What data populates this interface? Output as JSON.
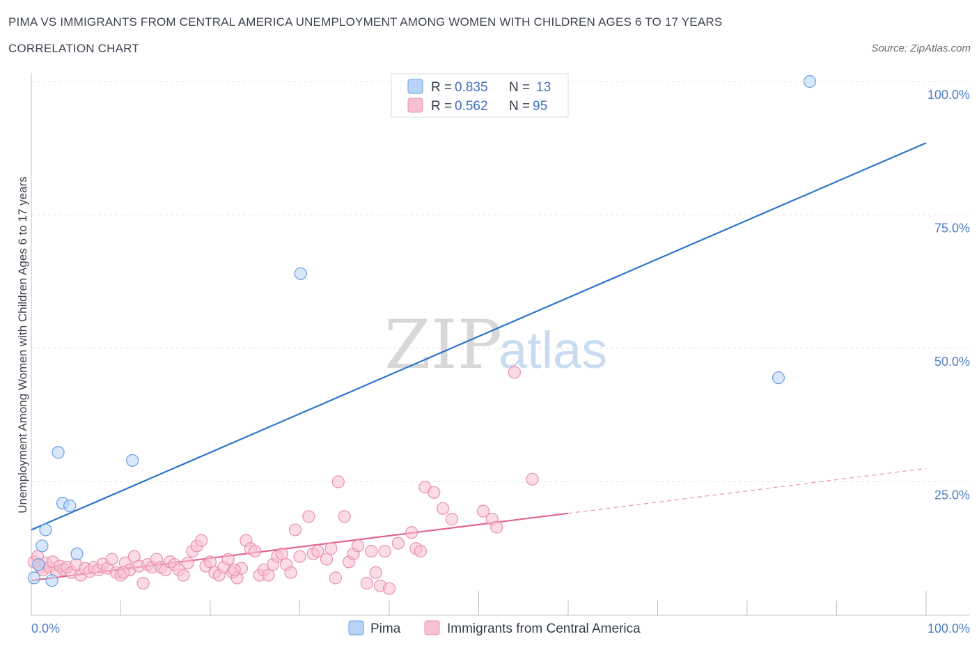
{
  "header": {
    "title": "PIMA VS IMMIGRANTS FROM CENTRAL AMERICA UNEMPLOYMENT AMONG WOMEN WITH CHILDREN AGES 6 TO 17 YEARS",
    "subtitle": "CORRELATION CHART",
    "source": "Source: ZipAtlas.com"
  },
  "watermark": {
    "zip": "ZIP",
    "atlas": "atlas"
  },
  "colors": {
    "pima_fill": "#b8d3f5",
    "pima_stroke": "#6b9ee0",
    "pima_line": "#2f74cc",
    "imm_fill": "#f7c0d2",
    "imm_stroke": "#e890ad",
    "imm_line": "#e2638f",
    "grid": "#e3e3e3",
    "axis": "#bfbfbf",
    "tick_text": "#4f7fc4"
  },
  "chart_data": {
    "type": "scatter",
    "title": "PIMA VS IMMIGRANTS FROM CENTRAL AMERICA UNEMPLOYMENT AMONG WOMEN WITH CHILDREN AGES 6 TO 17 YEARS",
    "xlabel": "",
    "ylabel": "Unemployment Among Women with Children Ages 6 to 17 years",
    "xlim": [
      0,
      100
    ],
    "ylim": [
      0,
      100
    ],
    "x_tick_labels": [
      "0.0%",
      "100.0%"
    ],
    "y_ticks": [
      25,
      50,
      75,
      100
    ],
    "y_tick_labels": [
      "25.0%",
      "50.0%",
      "75.0%",
      "100.0%"
    ],
    "grid": true,
    "legend": {
      "placement": "top-center",
      "entries": [
        {
          "series": "Pima",
          "r_label": "R =",
          "r_value": "0.835",
          "n_label": "N =",
          "n_value": "13"
        },
        {
          "series": "Immigrants from Central America",
          "r_label": "R =",
          "r_value": "0.562",
          "n_label": "N =",
          "n_value": "95"
        }
      ]
    },
    "series": [
      {
        "name": "Pima",
        "points": [
          [
            0.3,
            7.0
          ],
          [
            0.8,
            9.5
          ],
          [
            1.2,
            13.0
          ],
          [
            1.6,
            16.0
          ],
          [
            2.3,
            6.5
          ],
          [
            3.0,
            30.5
          ],
          [
            3.5,
            21.0
          ],
          [
            4.3,
            20.5
          ],
          [
            5.1,
            11.5
          ],
          [
            11.3,
            29.0
          ],
          [
            30.1,
            64.0
          ],
          [
            83.5,
            44.5
          ],
          [
            87.0,
            100.0
          ]
        ],
        "trend": {
          "x1": 0,
          "y1": 16.0,
          "x2": 100,
          "y2": 88.5,
          "dashed_from": null
        }
      },
      {
        "name": "Immigrants from Central America",
        "points": [
          [
            0.3,
            10.0
          ],
          [
            0.7,
            11.0
          ],
          [
            1.0,
            9.0
          ],
          [
            1.3,
            8.5
          ],
          [
            1.6,
            9.8
          ],
          [
            2.0,
            9.0
          ],
          [
            2.4,
            10.0
          ],
          [
            2.8,
            8.2
          ],
          [
            3.2,
            9.2
          ],
          [
            3.6,
            8.6
          ],
          [
            4.0,
            9.0
          ],
          [
            4.5,
            8.0
          ],
          [
            5.0,
            9.5
          ],
          [
            5.5,
            7.5
          ],
          [
            6.0,
            8.8
          ],
          [
            6.5,
            8.2
          ],
          [
            7.0,
            9.0
          ],
          [
            7.5,
            8.5
          ],
          [
            8.0,
            9.6
          ],
          [
            8.5,
            8.8
          ],
          [
            9.0,
            10.5
          ],
          [
            9.5,
            8.0
          ],
          [
            10.0,
            7.5
          ],
          [
            10.5,
            9.8
          ],
          [
            11.0,
            8.5
          ],
          [
            11.5,
            11.0
          ],
          [
            12.0,
            9.2
          ],
          [
            12.5,
            6.0
          ],
          [
            13.0,
            9.5
          ],
          [
            13.5,
            9.0
          ],
          [
            14.0,
            10.5
          ],
          [
            14.5,
            9.0
          ],
          [
            15.0,
            8.5
          ],
          [
            15.5,
            10.0
          ],
          [
            16.0,
            9.5
          ],
          [
            16.5,
            8.5
          ],
          [
            17.0,
            7.5
          ],
          [
            17.5,
            9.8
          ],
          [
            18.0,
            12.0
          ],
          [
            18.5,
            13.0
          ],
          [
            19.0,
            14.0
          ],
          [
            19.5,
            9.2
          ],
          [
            20.0,
            10.0
          ],
          [
            20.5,
            8.0
          ],
          [
            21.0,
            7.5
          ],
          [
            21.5,
            9.0
          ],
          [
            22.0,
            10.5
          ],
          [
            22.5,
            8.0
          ],
          [
            23.0,
            7.0
          ],
          [
            23.5,
            8.8
          ],
          [
            24.0,
            14.0
          ],
          [
            24.5,
            12.5
          ],
          [
            25.0,
            12.0
          ],
          [
            25.5,
            7.5
          ],
          [
            26.0,
            8.5
          ],
          [
            26.5,
            7.5
          ],
          [
            27.0,
            9.5
          ],
          [
            27.5,
            11.0
          ],
          [
            28.0,
            11.5
          ],
          [
            28.5,
            9.5
          ],
          [
            29.0,
            8.0
          ],
          [
            29.5,
            16.0
          ],
          [
            30.0,
            11.0
          ],
          [
            31.0,
            18.5
          ],
          [
            31.5,
            11.5
          ],
          [
            32.0,
            12.0
          ],
          [
            33.0,
            10.5
          ],
          [
            33.5,
            12.5
          ],
          [
            34.0,
            7.0
          ],
          [
            34.3,
            25.0
          ],
          [
            35.0,
            18.5
          ],
          [
            35.5,
            10.0
          ],
          [
            36.0,
            11.5
          ],
          [
            36.5,
            13.0
          ],
          [
            37.5,
            6.0
          ],
          [
            38.0,
            12.0
          ],
          [
            38.5,
            8.0
          ],
          [
            39.0,
            5.5
          ],
          [
            39.5,
            12.0
          ],
          [
            40.0,
            5.0
          ],
          [
            41.0,
            13.5
          ],
          [
            42.5,
            15.5
          ],
          [
            43.0,
            12.5
          ],
          [
            43.5,
            12.0
          ],
          [
            44.0,
            24.0
          ],
          [
            45.0,
            23.0
          ],
          [
            46.0,
            20.0
          ],
          [
            47.0,
            18.0
          ],
          [
            50.5,
            19.5
          ],
          [
            51.5,
            18.0
          ],
          [
            52.0,
            16.5
          ],
          [
            54.0,
            45.5
          ],
          [
            56.0,
            25.5
          ],
          [
            10.3,
            8.0
          ],
          [
            22.7,
            8.5
          ]
        ],
        "trend": {
          "x1": 0,
          "y1": 6.5,
          "x2": 100,
          "y2": 27.5,
          "dashed_from": 60
        }
      }
    ],
    "bottom_legend": [
      "Pima",
      "Immigrants from Central America"
    ]
  }
}
